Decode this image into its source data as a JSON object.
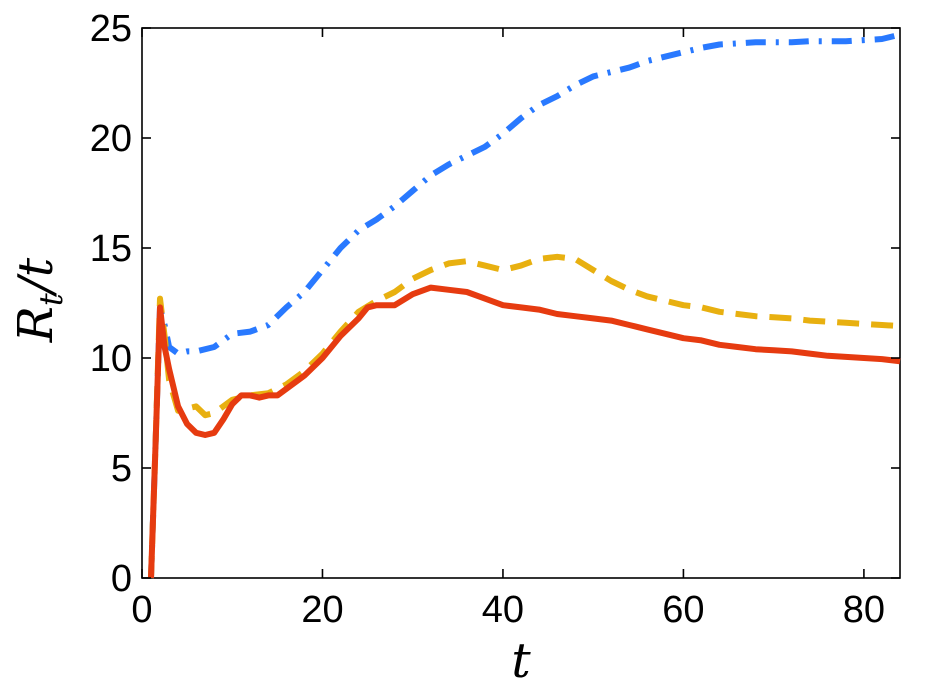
{
  "chart_data": {
    "type": "line",
    "title": "",
    "xlabel": "t",
    "ylabel": {
      "main": "R",
      "subscript": "t",
      "suffix": "/t"
    },
    "xlim": [
      0,
      84
    ],
    "ylim": [
      0,
      25
    ],
    "x_ticks": [
      0,
      20,
      40,
      60,
      80
    ],
    "y_ticks": [
      0,
      5,
      10,
      15,
      20,
      25
    ],
    "x_tick_labels": [
      "0",
      "20",
      "40",
      "60",
      "80"
    ],
    "y_tick_labels": [
      "0",
      "5",
      "10",
      "15",
      "20",
      "25"
    ],
    "grid": false,
    "legend": "none",
    "series": [
      {
        "name": "dash-dot blue",
        "color": "#2979ff",
        "style": "dashdot",
        "x": [
          1,
          1.5,
          2,
          2.5,
          3,
          4,
          5,
          6,
          8,
          10,
          12,
          14,
          16,
          18,
          20,
          22,
          24,
          26,
          28,
          30,
          32,
          34,
          36,
          38,
          40,
          42,
          44,
          46,
          48,
          50,
          52,
          54,
          56,
          58,
          60,
          62,
          64,
          66,
          68,
          70,
          72,
          74,
          76,
          78,
          80,
          82,
          84
        ],
        "y": [
          0,
          6,
          12.3,
          11.5,
          10.5,
          10.2,
          10.3,
          10.3,
          10.5,
          11.1,
          11.2,
          11.5,
          12.3,
          13.0,
          14.0,
          15.0,
          15.8,
          16.3,
          16.9,
          17.6,
          18.3,
          18.8,
          19.2,
          19.6,
          20.2,
          20.9,
          21.5,
          21.9,
          22.4,
          22.8,
          23.0,
          23.2,
          23.5,
          23.7,
          23.9,
          24.1,
          24.25,
          24.3,
          24.35,
          24.35,
          24.35,
          24.4,
          24.4,
          24.4,
          24.45,
          24.5,
          24.7
        ]
      },
      {
        "name": "dashed yellow",
        "color": "#e8b010",
        "style": "dashed",
        "x": [
          1,
          1.5,
          2,
          2.5,
          3,
          4,
          5,
          6,
          7,
          8,
          10,
          12,
          14,
          16,
          18,
          20,
          22,
          24,
          26,
          28,
          30,
          32,
          34,
          36,
          38,
          40,
          42,
          44,
          46,
          48,
          50,
          52,
          54,
          56,
          58,
          60,
          62,
          64,
          66,
          68,
          70,
          72,
          74,
          76,
          78,
          80,
          82,
          84
        ],
        "y": [
          0,
          6,
          12.7,
          11,
          9,
          7.6,
          7.7,
          7.8,
          7.4,
          7.5,
          8.1,
          8.3,
          8.4,
          8.8,
          9.4,
          10.2,
          11.2,
          12.1,
          12.6,
          13.0,
          13.6,
          14.0,
          14.3,
          14.4,
          14.2,
          14.0,
          14.2,
          14.5,
          14.6,
          14.5,
          14.0,
          13.5,
          13.1,
          12.8,
          12.6,
          12.4,
          12.3,
          12.1,
          12.0,
          11.9,
          11.85,
          11.8,
          11.7,
          11.65,
          11.6,
          11.55,
          11.5,
          11.45
        ]
      },
      {
        "name": "solid red",
        "color": "#e63b10",
        "style": "solid",
        "x": [
          1,
          1.5,
          2,
          2.5,
          3,
          4,
          5,
          6,
          7,
          8,
          9,
          10,
          11,
          12,
          13,
          14,
          15,
          16,
          18,
          20,
          22,
          24,
          25,
          26,
          28,
          30,
          32,
          34,
          36,
          38,
          40,
          42,
          44,
          46,
          48,
          50,
          52,
          54,
          56,
          58,
          60,
          62,
          64,
          66,
          68,
          70,
          72,
          74,
          76,
          78,
          80,
          82,
          84
        ],
        "y": [
          0,
          6,
          12.3,
          10.5,
          9.5,
          7.8,
          7.0,
          6.6,
          6.5,
          6.6,
          7.2,
          7.9,
          8.3,
          8.3,
          8.2,
          8.3,
          8.3,
          8.6,
          9.2,
          10.0,
          11.0,
          11.8,
          12.3,
          12.4,
          12.4,
          12.9,
          13.2,
          13.1,
          13.0,
          12.7,
          12.4,
          12.3,
          12.2,
          12.0,
          11.9,
          11.8,
          11.7,
          11.5,
          11.3,
          11.1,
          10.9,
          10.8,
          10.6,
          10.5,
          10.4,
          10.35,
          10.3,
          10.2,
          10.1,
          10.05,
          10.0,
          9.95,
          9.85
        ]
      }
    ]
  }
}
